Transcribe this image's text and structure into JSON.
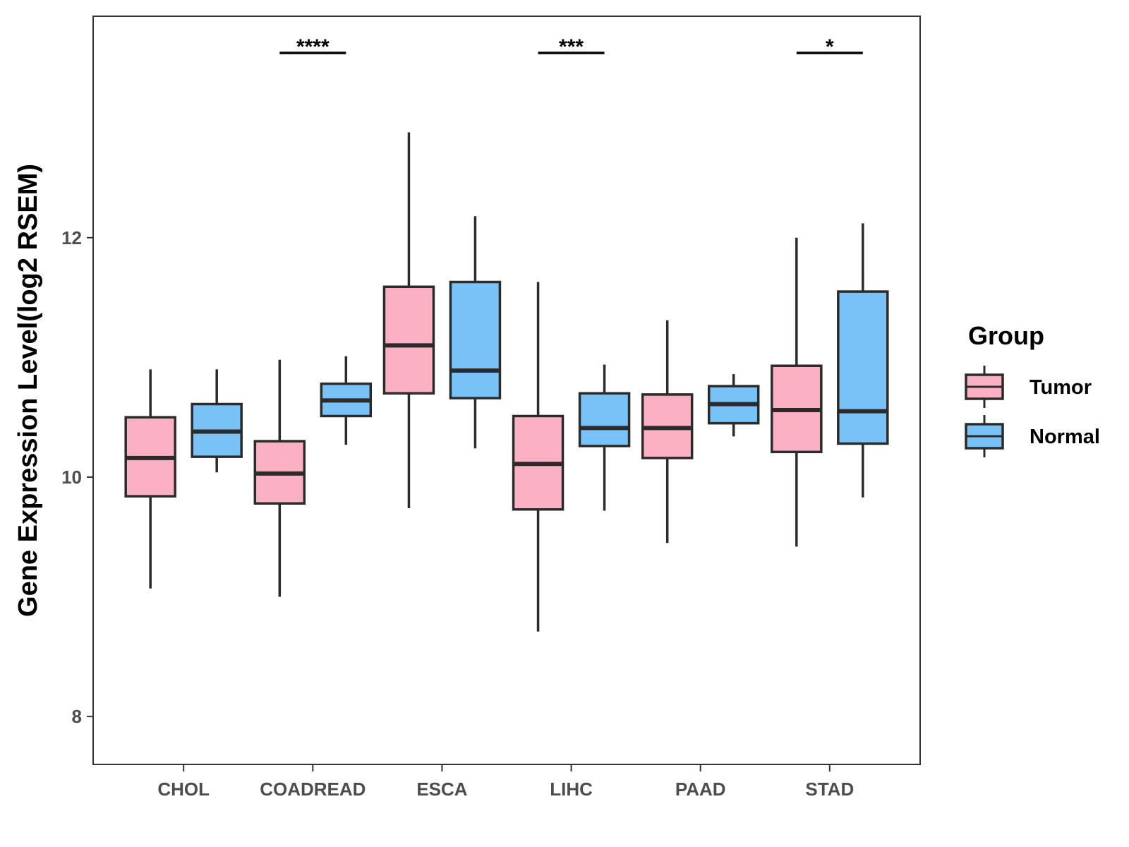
{
  "chart_data": {
    "type": "boxplot",
    "ylabel": "Gene Expression Level(log2 RSEM)",
    "xlabel": "",
    "ylim": [
      7.6,
      13.85
    ],
    "yticks": [
      8,
      10,
      12
    ],
    "categories": [
      "CHOL",
      "COADREAD",
      "ESCA",
      "LIHC",
      "PAAD",
      "STAD"
    ],
    "legend": {
      "title": "Group",
      "position": "right",
      "entries": [
        {
          "name": "Tumor",
          "color": "#fbb1c3"
        },
        {
          "name": "Normal",
          "color": "#78c2f8"
        }
      ]
    },
    "series": [
      {
        "name": "Tumor",
        "color": "#fbb1c3",
        "boxes": [
          {
            "min": 9.07,
            "q1": 9.84,
            "median": 10.16,
            "q3": 10.5,
            "max": 10.9
          },
          {
            "min": 9.0,
            "q1": 9.78,
            "median": 10.03,
            "q3": 10.3,
            "max": 10.98
          },
          {
            "min": 9.74,
            "q1": 10.7,
            "median": 11.1,
            "q3": 11.59,
            "max": 12.88
          },
          {
            "min": 8.71,
            "q1": 9.73,
            "median": 10.11,
            "q3": 10.51,
            "max": 11.63
          },
          {
            "min": 9.45,
            "q1": 10.16,
            "median": 10.41,
            "q3": 10.69,
            "max": 11.31
          },
          {
            "min": 9.42,
            "q1": 10.21,
            "median": 10.56,
            "q3": 10.93,
            "max": 12.0
          }
        ]
      },
      {
        "name": "Normal",
        "color": "#78c2f8",
        "boxes": [
          {
            "min": 10.04,
            "q1": 10.17,
            "median": 10.38,
            "q3": 10.61,
            "max": 10.9
          },
          {
            "min": 10.27,
            "q1": 10.51,
            "median": 10.64,
            "q3": 10.78,
            "max": 11.01
          },
          {
            "min": 10.24,
            "q1": 10.66,
            "median": 10.89,
            "q3": 11.63,
            "max": 12.18
          },
          {
            "min": 9.72,
            "q1": 10.26,
            "median": 10.41,
            "q3": 10.7,
            "max": 10.94
          },
          {
            "min": 10.34,
            "q1": 10.45,
            "median": 10.61,
            "q3": 10.76,
            "max": 10.86
          },
          {
            "min": 9.83,
            "q1": 10.28,
            "median": 10.55,
            "q3": 11.55,
            "max": 12.12
          }
        ]
      }
    ],
    "annotations": [
      {
        "category": "COADREAD",
        "label": "****"
      },
      {
        "category": "LIHC",
        "label": "***"
      },
      {
        "category": "STAD",
        "label": "*"
      }
    ]
  }
}
